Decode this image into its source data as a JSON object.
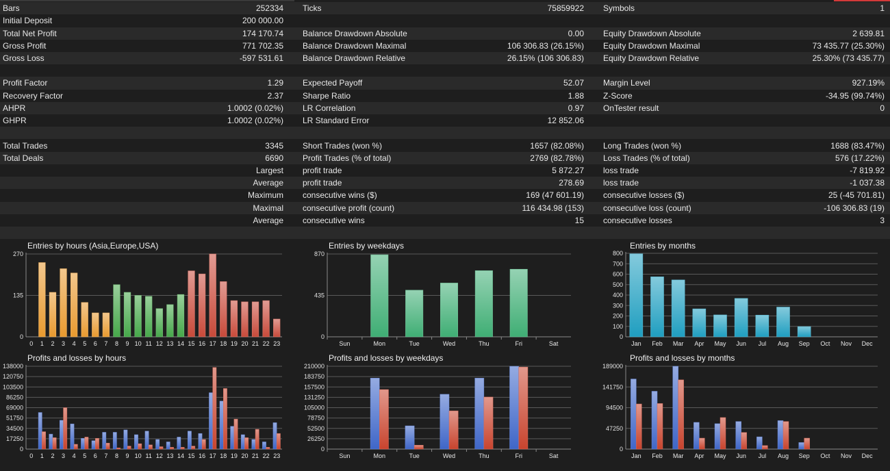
{
  "stats": {
    "rows": [
      {
        "l1": "Bars",
        "v1": "252334",
        "l2": "Ticks",
        "v2": "75859922",
        "l3": "Symbols",
        "v3": "1"
      },
      {
        "l1": "Initial Deposit",
        "v1": "200 000.00",
        "l2": "",
        "v2": "",
        "l3": "",
        "v3": ""
      },
      {
        "l1": "Total Net Profit",
        "v1": "174 170.74",
        "l2": "Balance Drawdown Absolute",
        "v2": "0.00",
        "l3": "Equity Drawdown Absolute",
        "v3": "2 639.81"
      },
      {
        "l1": "Gross Profit",
        "v1": "771 702.35",
        "l2": "Balance Drawdown Maximal",
        "v2": "106 306.83 (26.15%)",
        "l3": "Equity Drawdown Maximal",
        "v3": "73 435.77 (25.30%)"
      },
      {
        "l1": "Gross Loss",
        "v1": "-597 531.61",
        "l2": "Balance Drawdown Relative",
        "v2": "26.15% (106 306.83)",
        "l3": "Equity Drawdown Relative",
        "v3": "25.30% (73 435.77)"
      },
      {
        "l1": "",
        "v1": "",
        "l2": "",
        "v2": "",
        "l3": "",
        "v3": ""
      },
      {
        "l1": "Profit Factor",
        "v1": "1.29",
        "l2": "Expected Payoff",
        "v2": "52.07",
        "l3": "Margin Level",
        "v3": "927.19%"
      },
      {
        "l1": "Recovery Factor",
        "v1": "2.37",
        "l2": "Sharpe Ratio",
        "v2": "1.88",
        "l3": "Z-Score",
        "v3": "-34.95 (99.74%)"
      },
      {
        "l1": "AHPR",
        "v1": "1.0002 (0.02%)",
        "l2": "LR Correlation",
        "v2": "0.97",
        "l3": "OnTester result",
        "v3": "0"
      },
      {
        "l1": "GHPR",
        "v1": "1.0002 (0.02%)",
        "l2": "LR Standard Error",
        "v2": "12 852.06",
        "l3": "",
        "v3": ""
      },
      {
        "l1": "",
        "v1": "",
        "l2": "",
        "v2": "",
        "l3": "",
        "v3": ""
      },
      {
        "l1": "Total Trades",
        "v1": "3345",
        "l2": "Short Trades (won %)",
        "v2": "1657 (82.08%)",
        "l3": "Long Trades (won %)",
        "v3": "1688 (83.47%)"
      },
      {
        "l1": "Total Deals",
        "v1": "6690",
        "l2": "Profit Trades (% of total)",
        "v2": "2769 (82.78%)",
        "l3": "Loss Trades (% of total)",
        "v3": "576 (17.22%)"
      },
      {
        "l1": "",
        "v1": "Largest",
        "l2": "profit trade",
        "v2": "5 872.27",
        "l3": "loss trade",
        "v3": "-7 819.92"
      },
      {
        "l1": "",
        "v1": "Average",
        "l2": "profit trade",
        "v2": "278.69",
        "l3": "loss trade",
        "v3": "-1 037.38"
      },
      {
        "l1": "",
        "v1": "Maximum",
        "l2": "consecutive wins ($)",
        "v2": "169 (47 601.19)",
        "l3": "consecutive losses ($)",
        "v3": "25 (-45 701.81)"
      },
      {
        "l1": "",
        "v1": "Maximal",
        "l2": "consecutive profit (count)",
        "v2": "116 434.98 (153)",
        "l3": "consecutive loss (count)",
        "v3": "-106 306.83 (19)"
      },
      {
        "l1": "",
        "v1": "Average",
        "l2": "consecutive wins",
        "v2": "15",
        "l3": "consecutive losses",
        "v3": "3"
      },
      {
        "l1": "",
        "v1": "",
        "l2": "",
        "v2": "",
        "l3": "",
        "v3": ""
      }
    ]
  },
  "chart_data": [
    {
      "type": "bar",
      "title": "Entries by hours (Asia,Europe,USA)",
      "categories": [
        "0",
        "1",
        "2",
        "3",
        "4",
        "5",
        "6",
        "7",
        "8",
        "9",
        "10",
        "11",
        "12",
        "13",
        "14",
        "15",
        "16",
        "17",
        "18",
        "19",
        "20",
        "21",
        "22",
        "23"
      ],
      "values": [
        0,
        242,
        145,
        222,
        208,
        112,
        78,
        78,
        170,
        145,
        135,
        132,
        92,
        105,
        138,
        215,
        205,
        270,
        180,
        118,
        114,
        114,
        118,
        58
      ],
      "yticks": [
        "270",
        "135",
        "0"
      ],
      "ylim": [
        0,
        270
      ],
      "colors": [
        "#e89a2f",
        "#46a84a",
        "#c84a3a"
      ]
    },
    {
      "type": "bar",
      "title": "Entries by weekdays",
      "categories": [
        "Sun",
        "Mon",
        "Tue",
        "Wed",
        "Thu",
        "Fri",
        "Sat"
      ],
      "values": [
        0,
        862,
        490,
        565,
        695,
        710,
        0
      ],
      "yticks": [
        "870",
        "435",
        "0"
      ],
      "ylim": [
        0,
        870
      ],
      "colors": [
        "#3fae74"
      ]
    },
    {
      "type": "bar",
      "title": "Entries by months",
      "categories": [
        "Jan",
        "Feb",
        "Mar",
        "Apr",
        "May",
        "Jun",
        "Jul",
        "Aug",
        "Sep",
        "Oct",
        "Nov",
        "Dec"
      ],
      "values": [
        795,
        575,
        545,
        268,
        210,
        368,
        208,
        285,
        98,
        0,
        0,
        0
      ],
      "yticks": [
        "800",
        "700",
        "600",
        "500",
        "400",
        "300",
        "200",
        "100",
        "0"
      ],
      "ylim": [
        0,
        800
      ],
      "colors": [
        "#1f9ec0"
      ]
    },
    {
      "type": "bar",
      "title": "Profits and losses by hours",
      "categories": [
        "0",
        "1",
        "2",
        "3",
        "4",
        "5",
        "6",
        "7",
        "8",
        "9",
        "10",
        "11",
        "12",
        "13",
        "14",
        "15",
        "16",
        "17",
        "18",
        "19",
        "20",
        "21",
        "22",
        "23"
      ],
      "series": [
        {
          "values": [
            0,
            61000,
            25000,
            48000,
            42000,
            18000,
            14000,
            28000,
            28000,
            32000,
            24000,
            30000,
            16000,
            12000,
            20000,
            30000,
            26000,
            94000,
            80000,
            38000,
            24000,
            16000,
            12000,
            44000
          ]
        },
        {
          "values": [
            0,
            29000,
            19000,
            69000,
            8000,
            20000,
            18000,
            10000,
            2000,
            5000,
            9000,
            7000,
            4000,
            3000,
            3000,
            5000,
            16000,
            136000,
            101000,
            50000,
            19000,
            33000,
            3000,
            26000
          ]
        }
      ],
      "yticks": [
        "138000",
        "120750",
        "103500",
        "86250",
        "69000",
        "51750",
        "34500",
        "17250",
        "0"
      ],
      "ylim": [
        0,
        138000
      ],
      "colors": [
        "#3f66c8",
        "#c8442e"
      ]
    },
    {
      "type": "bar",
      "title": "Profits and losses by weekdays",
      "categories": [
        "Sun",
        "Mon",
        "Tue",
        "Wed",
        "Thu",
        "Fri",
        "Sat"
      ],
      "series": [
        {
          "values": [
            0,
            180000,
            59000,
            139000,
            180000,
            210000,
            0
          ]
        },
        {
          "values": [
            0,
            151000,
            10000,
            97000,
            132000,
            208000,
            0
          ]
        }
      ],
      "yticks": [
        "210000",
        "183750",
        "157500",
        "131250",
        "105000",
        "78750",
        "52500",
        "26250",
        "0"
      ],
      "ylim": [
        0,
        210000
      ],
      "colors": [
        "#3f66c8",
        "#c8442e"
      ]
    },
    {
      "type": "bar",
      "title": "Profits and losses by months",
      "categories": [
        "Jan",
        "Feb",
        "Mar",
        "Apr",
        "May",
        "Jun",
        "Jul",
        "Aug",
        "Sep",
        "Oct",
        "Nov",
        "Dec"
      ],
      "series": [
        {
          "values": [
            160000,
            132000,
            189000,
            61000,
            58000,
            63000,
            28000,
            65000,
            15000,
            0,
            0,
            0
          ]
        },
        {
          "values": [
            103000,
            104000,
            158000,
            25000,
            72000,
            38000,
            8000,
            63000,
            25000,
            0,
            0,
            0
          ]
        }
      ],
      "yticks": [
        "189000",
        "141750",
        "94500",
        "47250",
        "0"
      ],
      "ylim": [
        0,
        189000
      ],
      "colors": [
        "#3f66c8",
        "#c8442e"
      ]
    }
  ]
}
